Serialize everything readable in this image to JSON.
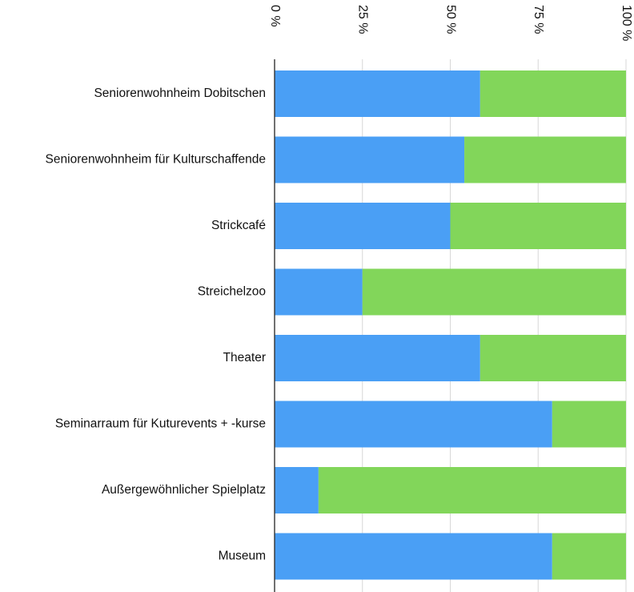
{
  "chart_data": {
    "type": "bar",
    "orientation": "horizontal",
    "stacked": true,
    "percent": true,
    "title": "",
    "xlabel": "",
    "ylabel": "",
    "xlim": [
      0,
      100
    ],
    "x_ticks": [
      {
        "value": 0,
        "label": "0 %"
      },
      {
        "value": 25,
        "label": "25 %"
      },
      {
        "value": 50,
        "label": "50 %"
      },
      {
        "value": 75,
        "label": "75 %"
      },
      {
        "value": 100,
        "label": "100 %"
      }
    ],
    "categories": [
      "Seniorenwohnheim Dobitschen",
      "Seniorenwohnheim für Kulturschaffende",
      "Strickcafé",
      "Streichelzoo",
      "Theater",
      "Seminarraum für Kuturevents + -kurse",
      "Außergewöhnlicher Spielplatz",
      "Museum"
    ],
    "series": [
      {
        "values": [
          58.5,
          54,
          50,
          25,
          58.5,
          79,
          12.5,
          79
        ],
        "color": "#4a9ff5"
      },
      {
        "values": [
          41.5,
          46,
          50,
          75,
          41.5,
          21,
          87.5,
          21
        ],
        "color": "#82d65a"
      }
    ],
    "grid": true,
    "tick_position": "top",
    "tick_label_rotation": "90deg",
    "legend": "none"
  }
}
